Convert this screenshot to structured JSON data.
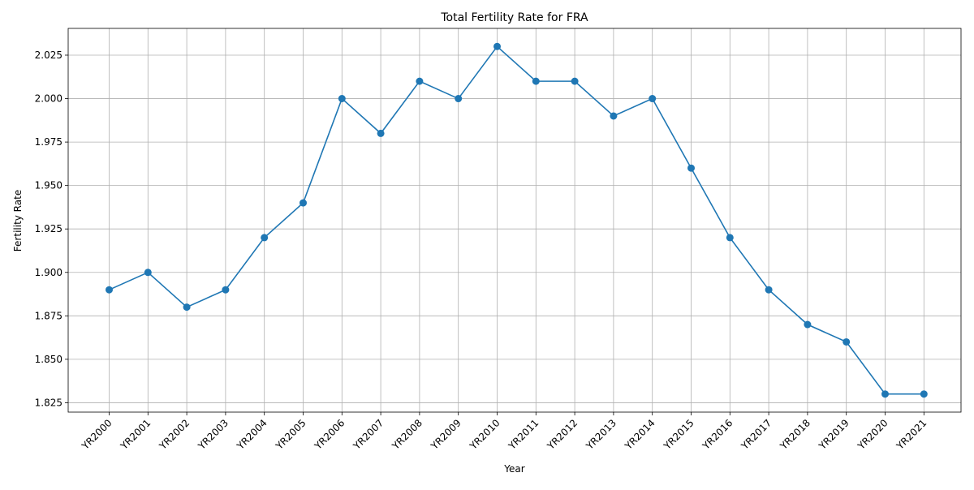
{
  "chart_data": {
    "type": "line",
    "title": "Total Fertility Rate for FRA",
    "xlabel": "Year",
    "ylabel": "Fertility Rate",
    "categories": [
      "YR2000",
      "YR2001",
      "YR2002",
      "YR2003",
      "YR2004",
      "YR2005",
      "YR2006",
      "YR2007",
      "YR2008",
      "YR2009",
      "YR2010",
      "YR2011",
      "YR2012",
      "YR2013",
      "YR2014",
      "YR2015",
      "YR2016",
      "YR2017",
      "YR2018",
      "YR2019",
      "YR2020",
      "YR2021"
    ],
    "values": [
      1.89,
      1.9,
      1.88,
      1.89,
      1.92,
      1.94,
      2.0,
      1.98,
      2.01,
      2.0,
      2.03,
      2.01,
      2.01,
      1.99,
      2.0,
      1.96,
      1.92,
      1.89,
      1.87,
      1.86,
      1.83,
      1.83
    ],
    "ylim": [
      1.8196,
      2.0404
    ],
    "yticks": [
      1.825,
      1.85,
      1.875,
      1.9,
      1.925,
      1.95,
      1.975,
      2.0,
      2.025
    ],
    "ytick_labels": [
      "1.825",
      "1.850",
      "1.875",
      "1.900",
      "1.925",
      "1.950",
      "1.975",
      "2.000",
      "2.025"
    ],
    "grid": true,
    "marker": "circle",
    "line_color": "#1f77b4",
    "grid_color": "#b0b0b0"
  }
}
